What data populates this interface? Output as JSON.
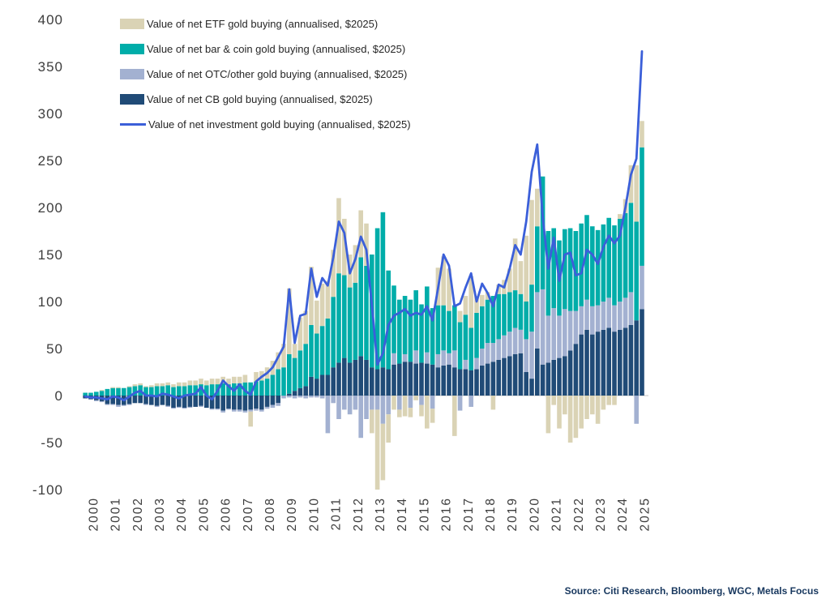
{
  "page": {
    "background": "#ffffff"
  },
  "legend": {
    "items": [
      {
        "label": "Value of net ETF gold buying (annualised, $2025)",
        "color": "#dad3b5",
        "type": "bar",
        "key": "etf"
      },
      {
        "label": "Value of net bar & coin gold buying (annualised, $2025)",
        "color": "#00ada9",
        "type": "bar",
        "key": "bar_coin"
      },
      {
        "label": "Value of net OTC/other gold buying (annualised, $2025)",
        "color": "#a3b1d1",
        "type": "bar",
        "key": "otc"
      },
      {
        "label": "Value of net CB gold buying (annualised, $2025)",
        "color": "#204b77",
        "type": "bar",
        "key": "cb"
      },
      {
        "label": "Value of net investment gold buying (annualised, $2025)",
        "color": "#3b5fd9",
        "type": "line",
        "key": "investment"
      }
    ]
  },
  "axes": {
    "y_ticks": [
      "400",
      "350",
      "300",
      "250",
      "200",
      "150",
      "100",
      "50",
      "0",
      "-50",
      "-100"
    ],
    "y_tick_values": [
      400,
      350,
      300,
      250,
      200,
      150,
      100,
      50,
      0,
      -50,
      -100
    ],
    "x_ticks": [
      "2000",
      "2001",
      "2002",
      "2003",
      "2004",
      "2005",
      "2006",
      "2007",
      "2008",
      "2009",
      "2010",
      "2011",
      "2012",
      "2013",
      "2014",
      "2015",
      "2016",
      "2017",
      "2018",
      "2019",
      "2020",
      "2021",
      "2022",
      "2023",
      "2024",
      "2025"
    ]
  },
  "source": {
    "text": "Source: Citi Research, Bloomberg, WGC, Metals Focus"
  },
  "chart_data": {
    "type": "bar",
    "subtype": "stacked-bar-with-line-overlay",
    "frequency": "quarterly",
    "ylim": [
      -100,
      400
    ],
    "grid": "zero-line-only",
    "legend_position": "top-left",
    "stack_order": [
      "cb",
      "otc",
      "bar_coin",
      "etf"
    ],
    "categories": [
      "2000Q1",
      "2000Q2",
      "2000Q3",
      "2000Q4",
      "2001Q1",
      "2001Q2",
      "2001Q3",
      "2001Q4",
      "2002Q1",
      "2002Q2",
      "2002Q3",
      "2002Q4",
      "2003Q1",
      "2003Q2",
      "2003Q3",
      "2003Q4",
      "2004Q1",
      "2004Q2",
      "2004Q3",
      "2004Q4",
      "2005Q1",
      "2005Q2",
      "2005Q3",
      "2005Q4",
      "2006Q1",
      "2006Q2",
      "2006Q3",
      "2006Q4",
      "2007Q1",
      "2007Q2",
      "2007Q3",
      "2007Q4",
      "2008Q1",
      "2008Q2",
      "2008Q3",
      "2008Q4",
      "2009Q1",
      "2009Q2",
      "2009Q3",
      "2009Q4",
      "2010Q1",
      "2010Q2",
      "2010Q3",
      "2010Q4",
      "2011Q1",
      "2011Q2",
      "2011Q3",
      "2011Q4",
      "2012Q1",
      "2012Q2",
      "2012Q3",
      "2012Q4",
      "2013Q1",
      "2013Q2",
      "2013Q3",
      "2013Q4",
      "2014Q1",
      "2014Q2",
      "2014Q3",
      "2014Q4",
      "2015Q1",
      "2015Q2",
      "2015Q3",
      "2015Q4",
      "2016Q1",
      "2016Q2",
      "2016Q3",
      "2016Q4",
      "2017Q1",
      "2017Q2",
      "2017Q3",
      "2017Q4",
      "2018Q1",
      "2018Q2",
      "2018Q3",
      "2018Q4",
      "2019Q1",
      "2019Q2",
      "2019Q3",
      "2019Q4",
      "2020Q1",
      "2020Q2",
      "2020Q3",
      "2020Q4",
      "2021Q1",
      "2021Q2",
      "2021Q3",
      "2021Q4",
      "2022Q1",
      "2022Q2",
      "2022Q3",
      "2022Q4",
      "2023Q1",
      "2023Q2",
      "2023Q3",
      "2023Q4",
      "2024Q1",
      "2024Q2",
      "2024Q3",
      "2024Q4",
      "2025Q1",
      "2025Q2"
    ],
    "series": [
      {
        "key": "etf",
        "name": "Value of net ETF gold buying (annualised, $2025)",
        "color": "#dad3b5",
        "values": [
          0,
          0,
          0,
          1,
          0,
          1,
          1,
          0,
          1,
          2,
          2,
          1,
          2,
          3,
          3,
          3,
          3,
          4,
          4,
          5,
          5,
          6,
          5,
          6,
          6,
          7,
          6,
          7,
          7,
          8,
          -16,
          10,
          10,
          12,
          15,
          18,
          25,
          70,
          15,
          35,
          35,
          62,
          35,
          45,
          40,
          50,
          80,
          60,
          35,
          40,
          50,
          45,
          -25,
          -85,
          -60,
          -30,
          -15,
          -8,
          -22,
          -10,
          -5,
          -12,
          -35,
          -15,
          40,
          52,
          45,
          -43,
          12,
          20,
          55,
          18,
          12,
          8,
          -15,
          10,
          15,
          25,
          55,
          35,
          70,
          90,
          40,
          0,
          -40,
          -10,
          -35,
          -20,
          -50,
          -45,
          -35,
          -25,
          -20,
          -30,
          -15,
          -10,
          -10,
          5,
          15,
          40,
          60,
          28
        ]
      },
      {
        "key": "bar_coin",
        "name": "Value of net bar & coin gold buying (annualised, $2025)",
        "color": "#00ada9",
        "values": [
          3,
          3,
          4,
          5,
          7,
          8,
          8,
          8,
          9,
          10,
          11,
          9,
          9,
          10,
          10,
          11,
          9,
          10,
          10,
          11,
          11,
          12,
          11,
          12,
          12,
          13,
          12,
          13,
          13,
          14,
          14,
          15,
          16,
          18,
          22,
          28,
          30,
          42,
          35,
          40,
          45,
          55,
          48,
          52,
          60,
          75,
          95,
          88,
          80,
          82,
          105,
          100,
          120,
          150,
          165,
          105,
          72,
          68,
          62,
          66,
          64,
          62,
          70,
          60,
          52,
          48,
          45,
          48,
          50,
          48,
          45,
          48,
          45,
          46,
          50,
          48,
          44,
          42,
          40,
          38,
          40,
          50,
          70,
          120,
          90,
          85,
          80,
          85,
          88,
          85,
          88,
          90,
          85,
          80,
          82,
          85,
          85,
          88,
          90,
          95,
          105,
          126
        ]
      },
      {
        "key": "otc",
        "name": "Value of net OTC/other gold buying (annualised, $2025)",
        "color": "#a3b1d1",
        "values": [
          0,
          0,
          -1,
          -1,
          -1,
          -1,
          -2,
          -1,
          -1,
          0,
          0,
          -1,
          0,
          -1,
          0,
          -1,
          -1,
          -1,
          -1,
          -1,
          0,
          -1,
          0,
          -1,
          -1,
          -2,
          -1,
          -2,
          -2,
          -2,
          -2,
          -2,
          -2,
          -2,
          -3,
          -3,
          -3,
          -2,
          -3,
          -2,
          -3,
          -2,
          -2,
          -3,
          -40,
          -8,
          -25,
          -15,
          -20,
          -15,
          -45,
          -25,
          -15,
          -15,
          -30,
          -20,
          12,
          -15,
          8,
          -13,
          14,
          -10,
          12,
          -14,
          14,
          16,
          12,
          18,
          -16,
          10,
          -12,
          12,
          18,
          22,
          20,
          22,
          24,
          26,
          28,
          25,
          35,
          50,
          60,
          80,
          50,
          55,
          45,
          50,
          42,
          35,
          30,
          32,
          30,
          28,
          30,
          32,
          28,
          30,
          32,
          35,
          -30,
          46
        ]
      },
      {
        "key": "cb",
        "name": "Value of net CB gold buying (annualised, $2025)",
        "color": "#204b77",
        "values": [
          -3,
          -4,
          -5,
          -6,
          -9,
          -9,
          -10,
          -10,
          -9,
          -8,
          -8,
          -9,
          -10,
          -11,
          -10,
          -11,
          -13,
          -12,
          -13,
          -12,
          -12,
          -11,
          -13,
          -14,
          -14,
          -16,
          -14,
          -15,
          -15,
          -16,
          -15,
          -14,
          -15,
          -12,
          -10,
          -8,
          0,
          2,
          5,
          8,
          10,
          20,
          18,
          22,
          22,
          30,
          35,
          40,
          35,
          38,
          42,
          38,
          30,
          28,
          30,
          28,
          33,
          34,
          36,
          36,
          34,
          35,
          34,
          33,
          30,
          32,
          33,
          30,
          28,
          28,
          27,
          28,
          32,
          34,
          36,
          38,
          40,
          42,
          44,
          45,
          25,
          18,
          50,
          33,
          35,
          38,
          40,
          42,
          48,
          55,
          65,
          70,
          65,
          68,
          70,
          72,
          68,
          70,
          72,
          75,
          80,
          92
        ]
      }
    ],
    "line_series": {
      "key": "investment",
      "name": "Value of net investment gold buying (annualised, $2025)",
      "color": "#3b5fd9",
      "values": [
        -1,
        -2,
        -2,
        -3,
        -4,
        -1,
        -2,
        -5,
        -1,
        3,
        5,
        0,
        0,
        -1,
        2,
        1,
        -1,
        -3,
        0,
        1,
        2,
        9,
        0,
        -4,
        5,
        16,
        10,
        5,
        12,
        5,
        1,
        15,
        20,
        24,
        30,
        41,
        52,
        113,
        56,
        85,
        87,
        135,
        105,
        125,
        117,
        147,
        185,
        173,
        130,
        145,
        169,
        155,
        96,
        33,
        45,
        75,
        85,
        88,
        92,
        85,
        88,
        86,
        95,
        80,
        114,
        150,
        138,
        95,
        98,
        115,
        130,
        100,
        119,
        109,
        95,
        118,
        115,
        135,
        160,
        150,
        185,
        238,
        267,
        190,
        135,
        168,
        122,
        150,
        152,
        128,
        130,
        155,
        150,
        140,
        158,
        170,
        162,
        170,
        200,
        235,
        252,
        366
      ]
    }
  },
  "style": {
    "zero_line_color": "#d9d9d9",
    "axis_text_color": "#3d3d3d"
  }
}
